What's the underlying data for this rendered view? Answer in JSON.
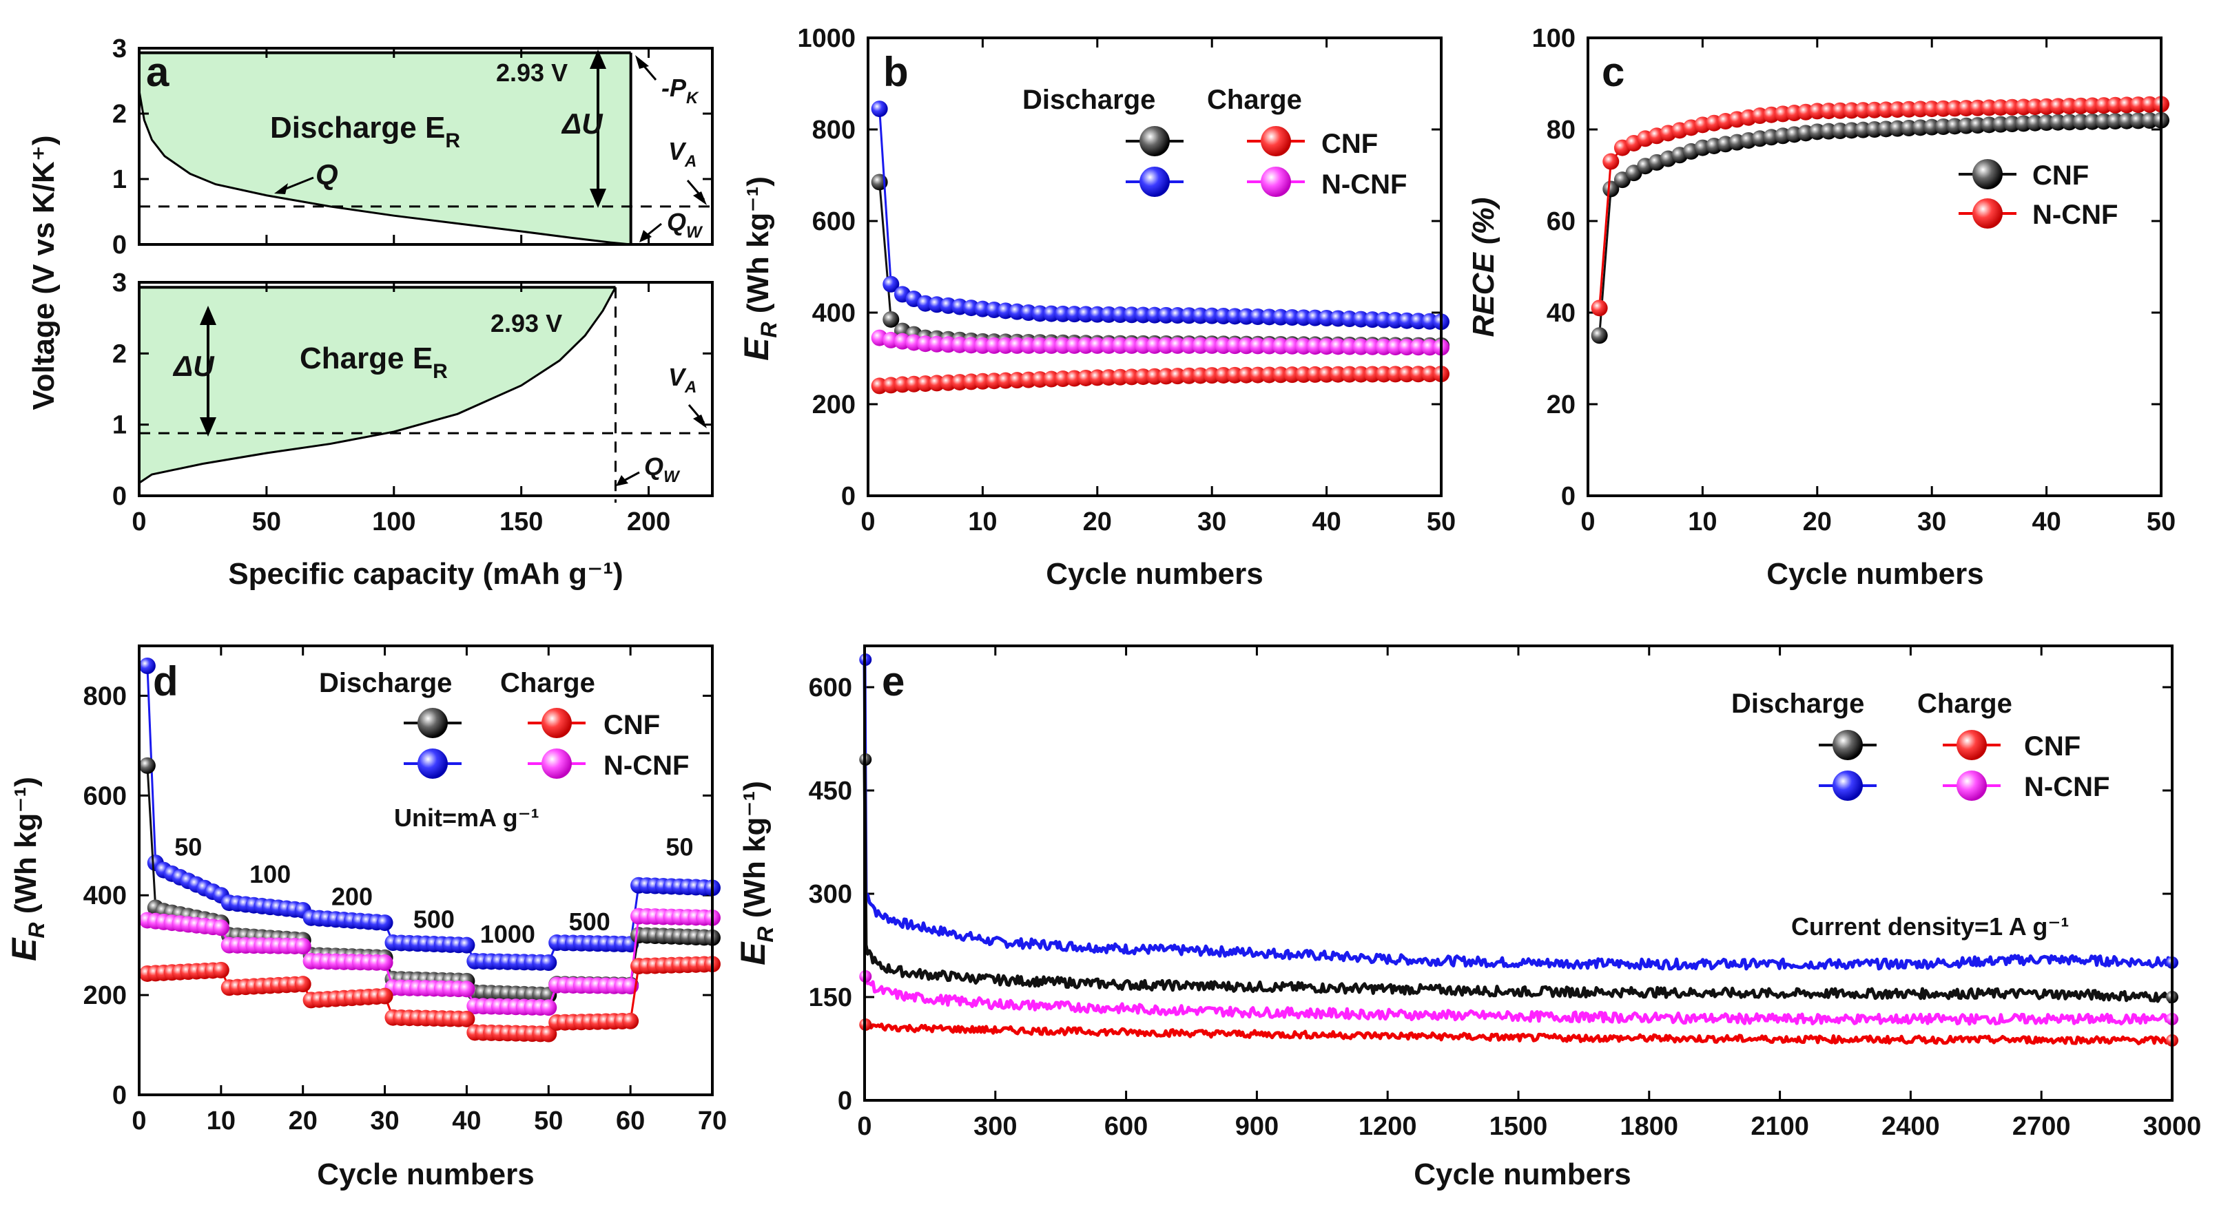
{
  "colors": {
    "CNF_discharge": "#111111",
    "CNF_charge": "#ee0000",
    "NCNF_discharge": "#1a1aee",
    "NCNF_charge": "#ff22ff",
    "fill": "#cdf2cf"
  },
  "chart_data": [
    {
      "id": "a",
      "type": "line",
      "label": "a",
      "title": "",
      "xlabel": "Specific capacity (mAh g⁻¹)",
      "ylabel": "Voltage (V vs K/K⁺)",
      "xlim": [
        0,
        225
      ],
      "xticks": [
        "0",
        "50",
        "100",
        "150",
        "200"
      ],
      "top": {
        "ylim": [
          0,
          3
        ],
        "yticks": [
          "0",
          "1",
          "2",
          "3"
        ],
        "curve": {
          "x": [
            0,
            2,
            5,
            10,
            20,
            30,
            50,
            75,
            100,
            125,
            150,
            170,
            185,
            193
          ],
          "y": [
            2.35,
            1.9,
            1.6,
            1.35,
            1.08,
            0.92,
            0.75,
            0.58,
            0.44,
            0.32,
            0.2,
            0.1,
            0.03,
            0
          ]
        },
        "fill_text": "Discharge E",
        "fill_sub": "R",
        "voltage_label": "2.93 V",
        "voltage_value": 2.93,
        "average_voltage": 0.58,
        "capacity_end": 193,
        "labels": {
          "Q": "Q",
          "dU": "ΔU",
          "PK": "-P",
          "PK_sub": "K",
          "VA": "V",
          "VA_sub": "A",
          "QW": "Q",
          "QW_sub": "W"
        }
      },
      "bottom": {
        "ylim": [
          0,
          3
        ],
        "yticks": [
          "0",
          "1",
          "2",
          "3"
        ],
        "curve": {
          "x": [
            0,
            5,
            25,
            50,
            75,
            100,
            125,
            150,
            165,
            175,
            182,
            187
          ],
          "y": [
            0.18,
            0.3,
            0.45,
            0.6,
            0.73,
            0.9,
            1.15,
            1.55,
            1.9,
            2.25,
            2.6,
            2.93
          ]
        },
        "fill_text": "Charge E",
        "fill_sub": "R",
        "voltage_label": "2.93 V",
        "voltage_value": 2.93,
        "average_voltage": 0.88,
        "capacity_end": 187,
        "labels": {
          "dU": "ΔU",
          "VA": "V",
          "VA_sub": "A",
          "QW": "Q",
          "QW_sub": "W"
        }
      }
    },
    {
      "id": "b",
      "type": "scatter",
      "label": "b",
      "xlabel": "Cycle numbers",
      "ylabel": "E",
      "ylabel_sub": "R",
      "ylabel_unit": " (Wh kg⁻¹)",
      "xlim": [
        0,
        50
      ],
      "ylim": [
        0,
        1000
      ],
      "xticks": [
        "0",
        "10",
        "20",
        "30",
        "40",
        "50"
      ],
      "yticks": [
        "0",
        "200",
        "400",
        "600",
        "800",
        "1000"
      ],
      "legend": {
        "header_left": "Discharge",
        "header_right": "Charge",
        "CNF": "CNF",
        "NCNF": "N-CNF"
      },
      "series": [
        {
          "name": "CNF discharge",
          "points": [
            [
              1,
              685
            ],
            [
              2,
              385
            ],
            [
              3,
              360
            ],
            [
              5,
              345
            ],
            [
              10,
              337
            ],
            [
              20,
              333
            ],
            [
              30,
              332
            ],
            [
              40,
              330
            ],
            [
              50,
              328
            ]
          ]
        },
        {
          "name": "N-CNF discharge",
          "points": [
            [
              1,
              845
            ],
            [
              2,
              462
            ],
            [
              3,
              440
            ],
            [
              5,
              420
            ],
            [
              10,
              408
            ],
            [
              15,
              398
            ],
            [
              20,
              396
            ],
            [
              30,
              393
            ],
            [
              40,
              388
            ],
            [
              50,
              380
            ]
          ]
        },
        {
          "name": "N-CNF charge",
          "points": [
            [
              1,
              345
            ],
            [
              2,
              340
            ],
            [
              5,
              332
            ],
            [
              10,
              328
            ],
            [
              20,
              328
            ],
            [
              30,
              328
            ],
            [
              40,
              326
            ],
            [
              50,
              324
            ]
          ]
        },
        {
          "name": "CNF charge",
          "points": [
            [
              1,
              240
            ],
            [
              3,
              243
            ],
            [
              10,
              250
            ],
            [
              20,
              258
            ],
            [
              30,
              263
            ],
            [
              40,
              265
            ],
            [
              50,
              266
            ]
          ]
        }
      ]
    },
    {
      "id": "c",
      "type": "scatter",
      "label": "c",
      "xlabel": "Cycle numbers",
      "ylabel": "RECE (%)",
      "xlim": [
        0,
        50
      ],
      "ylim": [
        0,
        100
      ],
      "xticks": [
        "0",
        "10",
        "20",
        "30",
        "40",
        "50"
      ],
      "yticks": [
        "0",
        "20",
        "40",
        "60",
        "80",
        "100"
      ],
      "legend": {
        "CNF": "CNF",
        "NCNF": "N-CNF"
      },
      "series": [
        {
          "name": "CNF",
          "points": [
            [
              1,
              35
            ],
            [
              2,
              67
            ],
            [
              3,
              69
            ],
            [
              5,
              72
            ],
            [
              10,
              76
            ],
            [
              15,
              78
            ],
            [
              20,
              79.5
            ],
            [
              30,
              80.5
            ],
            [
              40,
              81.5
            ],
            [
              50,
              82
            ]
          ]
        },
        {
          "name": "N-CNF",
          "points": [
            [
              1,
              41
            ],
            [
              2,
              73
            ],
            [
              3,
              76
            ],
            [
              5,
              78
            ],
            [
              10,
              81
            ],
            [
              15,
              83
            ],
            [
              20,
              84
            ],
            [
              30,
              84.5
            ],
            [
              40,
              85
            ],
            [
              50,
              85.5
            ]
          ]
        }
      ]
    },
    {
      "id": "d",
      "type": "scatter",
      "label": "d",
      "xlabel": "Cycle numbers",
      "ylabel": "E",
      "ylabel_sub": "R",
      "ylabel_unit": " (Wh kg⁻¹)",
      "xlim": [
        0,
        70
      ],
      "ylim": [
        0,
        900
      ],
      "xticks": [
        "0",
        "10",
        "20",
        "30",
        "40",
        "50",
        "60",
        "70"
      ],
      "yticks": [
        "0",
        "200",
        "400",
        "600",
        "800"
      ],
      "legend": {
        "header_left": "Discharge",
        "header_right": "Charge",
        "CNF": "CNF",
        "NCNF": "N-CNF"
      },
      "unit_note": "Unit=mA g⁻¹",
      "rate_labels": [
        {
          "x": 6,
          "y": 480,
          "text": "50"
        },
        {
          "x": 16,
          "y": 425,
          "text": "100"
        },
        {
          "x": 26,
          "y": 380,
          "text": "200"
        },
        {
          "x": 36,
          "y": 335,
          "text": "500"
        },
        {
          "x": 45,
          "y": 305,
          "text": "1000"
        },
        {
          "x": 55,
          "y": 330,
          "text": "500"
        },
        {
          "x": 66,
          "y": 480,
          "text": "50"
        }
      ],
      "series": [
        {
          "name": "N-CNF discharge",
          "segments": [
            [
              1,
              10,
              860,
              400,
              465
            ],
            [
              11,
              20,
              385,
              370,
              0
            ],
            [
              21,
              30,
              355,
              345,
              0
            ],
            [
              31,
              40,
              305,
              300,
              0
            ],
            [
              41,
              50,
              268,
              265,
              0
            ],
            [
              51,
              60,
              305,
              302,
              0
            ],
            [
              61,
              70,
              420,
              415,
              0
            ]
          ]
        },
        {
          "name": "CNF discharge",
          "segments": [
            [
              1,
              10,
              660,
              345,
              375
            ],
            [
              11,
              20,
              320,
              310,
              0
            ],
            [
              21,
              30,
              280,
              275,
              0
            ],
            [
              31,
              40,
              232,
              228,
              0
            ],
            [
              41,
              50,
              205,
              200,
              0
            ],
            [
              51,
              60,
              222,
              220,
              0
            ],
            [
              61,
              70,
              320,
              315,
              0
            ]
          ]
        },
        {
          "name": "N-CNF charge",
          "segments": [
            [
              1,
              10,
              350,
              335,
              0
            ],
            [
              11,
              20,
              300,
              298,
              0
            ],
            [
              21,
              30,
              268,
              265,
              0
            ],
            [
              31,
              40,
              215,
              212,
              0
            ],
            [
              41,
              50,
              178,
              175,
              0
            ],
            [
              51,
              60,
              220,
              218,
              0
            ],
            [
              61,
              70,
              358,
              355,
              0
            ]
          ]
        },
        {
          "name": "CNF charge",
          "segments": [
            [
              1,
              10,
              243,
              250,
              0
            ],
            [
              11,
              20,
              215,
              222,
              0
            ],
            [
              21,
              30,
              190,
              198,
              0
            ],
            [
              31,
              40,
              155,
              152,
              0
            ],
            [
              41,
              50,
              125,
              122,
              0
            ],
            [
              51,
              60,
              145,
              148,
              0
            ],
            [
              61,
              70,
              258,
              262,
              0
            ]
          ]
        }
      ]
    },
    {
      "id": "e",
      "type": "scatter",
      "label": "e",
      "xlabel": "Cycle numbers",
      "ylabel": "E",
      "ylabel_sub": "R",
      "ylabel_unit": " (Wh kg⁻¹)",
      "xlim": [
        0,
        3000
      ],
      "ylim": [
        0,
        660
      ],
      "xticks": [
        "0",
        "300",
        "600",
        "900",
        "1200",
        "1500",
        "1800",
        "2100",
        "2400",
        "2700",
        "3000"
      ],
      "yticks": [
        "0",
        "150",
        "300",
        "450",
        "600"
      ],
      "legend": {
        "header_left": "Discharge",
        "header_right": "Charge",
        "CNF": "CNF",
        "NCNF": "N-CNF"
      },
      "note": "Current density=1 A g⁻¹",
      "series": [
        {
          "name": "N-CNF discharge",
          "first": 640,
          "points": [
            [
              5,
              300
            ],
            [
              30,
              270
            ],
            [
              100,
              255
            ],
            [
              300,
              230
            ],
            [
              600,
              220
            ],
            [
              900,
              215
            ],
            [
              1200,
              205
            ],
            [
              1500,
              200
            ],
            [
              1800,
              198
            ],
            [
              2100,
              198
            ],
            [
              2400,
              198
            ],
            [
              2700,
              205
            ],
            [
              3000,
              200
            ]
          ],
          "noise": 7
        },
        {
          "name": "CNF discharge",
          "first": 495,
          "points": [
            [
              5,
              220
            ],
            [
              30,
              195
            ],
            [
              100,
              185
            ],
            [
              300,
              175
            ],
            [
              600,
              168
            ],
            [
              900,
              165
            ],
            [
              1200,
              162
            ],
            [
              1500,
              158
            ],
            [
              1800,
              157
            ],
            [
              2100,
              155
            ],
            [
              2400,
              155
            ],
            [
              2700,
              155
            ],
            [
              3000,
              150
            ]
          ],
          "noise": 7
        },
        {
          "name": "N-CNF charge",
          "first": 180,
          "points": [
            [
              5,
              175
            ],
            [
              30,
              160
            ],
            [
              100,
              150
            ],
            [
              300,
              140
            ],
            [
              600,
              133
            ],
            [
              900,
              128
            ],
            [
              1200,
              125
            ],
            [
              1500,
              122
            ],
            [
              1800,
              120
            ],
            [
              2100,
              118
            ],
            [
              2400,
              118
            ],
            [
              2700,
              118
            ],
            [
              3000,
              118
            ]
          ],
          "noise": 7
        },
        {
          "name": "CNF charge",
          "first": 110,
          "points": [
            [
              5,
              110
            ],
            [
              30,
              107
            ],
            [
              100,
              105
            ],
            [
              300,
              102
            ],
            [
              600,
              99
            ],
            [
              900,
              96
            ],
            [
              1200,
              94
            ],
            [
              1500,
              91
            ],
            [
              1800,
              90
            ],
            [
              2100,
              89
            ],
            [
              2400,
              88
            ],
            [
              2700,
              88
            ],
            [
              3000,
              87
            ]
          ],
          "noise": 5
        }
      ]
    }
  ]
}
